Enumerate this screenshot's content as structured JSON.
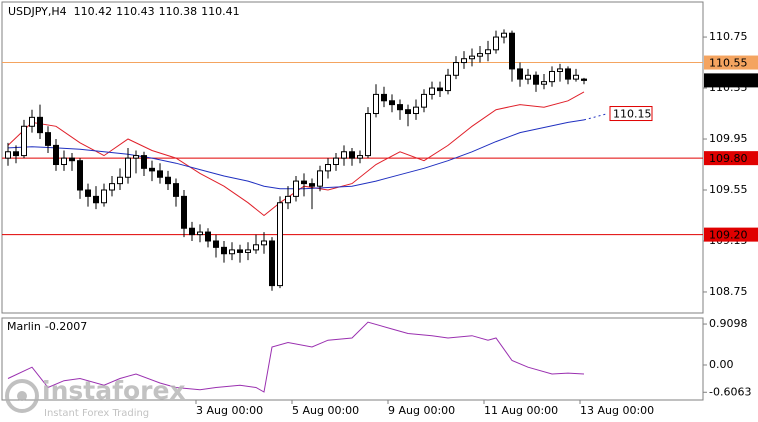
{
  "chart_data": [
    {
      "type": "candlestick",
      "title": "USDJPY,H4",
      "xlim": [
        -0.75,
        86.875
      ],
      "ylim": [
        108.585,
        111.025
      ],
      "yticks": [
        110.75,
        110.35,
        109.95,
        109.55,
        109.15,
        108.75
      ],
      "xticks": [
        {
          "value": 23.5,
          "label": "3 Aug 00:00"
        },
        {
          "value": 35.5,
          "label": "5 Aug 00:00"
        },
        {
          "value": 47.5,
          "label": "9 Aug 00:00"
        },
        {
          "value": 59.5,
          "label": "11 Aug 00:00"
        },
        {
          "value": 71.5,
          "label": "13 Aug 00:00"
        }
      ],
      "up_color": "#ffffff",
      "down_color": "#000000",
      "outline_color": "#000000",
      "open": [
        109.8,
        109.85,
        109.82,
        110.05,
        110.12,
        110.0,
        109.9,
        109.75,
        109.8,
        109.78,
        109.55,
        109.5,
        109.45,
        109.55,
        109.6,
        109.65,
        109.8,
        109.82,
        109.72,
        109.7,
        109.65,
        109.6,
        109.5,
        109.25,
        109.2,
        109.22,
        109.15,
        109.1,
        109.05,
        109.08,
        109.06,
        109.08,
        109.12,
        109.15,
        108.8,
        109.45,
        109.5,
        109.62,
        109.6,
        109.58,
        109.7,
        109.75,
        109.8,
        109.85,
        109.8,
        109.82,
        110.15,
        110.3,
        110.25,
        110.22,
        110.18,
        110.15,
        110.2,
        110.3,
        110.35,
        110.33,
        110.45,
        110.55,
        110.58,
        110.6,
        110.62,
        110.65,
        110.75,
        110.78,
        110.5,
        110.42,
        110.45,
        110.38,
        110.4,
        110.48,
        110.5,
        110.42,
        110.42
      ],
      "high": [
        109.92,
        109.9,
        110.1,
        110.18,
        110.22,
        110.05,
        109.95,
        109.86,
        109.84,
        109.8,
        109.6,
        109.58,
        109.6,
        109.66,
        109.72,
        109.88,
        109.86,
        109.85,
        109.78,
        109.76,
        109.7,
        109.64,
        109.55,
        109.3,
        109.28,
        109.25,
        109.2,
        109.15,
        109.14,
        109.12,
        109.14,
        109.2,
        109.22,
        109.18,
        109.5,
        109.58,
        109.66,
        109.68,
        109.64,
        109.74,
        109.8,
        109.84,
        109.9,
        109.88,
        109.86,
        110.2,
        110.38,
        110.36,
        110.3,
        110.26,
        110.22,
        110.26,
        110.34,
        110.4,
        110.4,
        110.5,
        110.6,
        110.64,
        110.66,
        110.68,
        110.72,
        110.8,
        110.81,
        110.8,
        110.55,
        110.5,
        110.48,
        110.46,
        110.52,
        110.54,
        110.52,
        110.5,
        110.43
      ],
      "low": [
        109.74,
        109.76,
        109.8,
        110.0,
        109.95,
        109.84,
        109.7,
        109.7,
        109.7,
        109.48,
        109.42,
        109.4,
        109.42,
        109.5,
        109.55,
        109.6,
        109.68,
        109.66,
        109.62,
        109.6,
        109.55,
        109.42,
        109.18,
        109.15,
        109.14,
        109.1,
        109.02,
        108.98,
        109.0,
        108.98,
        109.0,
        109.05,
        109.05,
        108.76,
        108.78,
        109.4,
        109.46,
        109.5,
        109.4,
        109.54,
        109.64,
        109.7,
        109.74,
        109.74,
        109.76,
        109.8,
        110.12,
        110.2,
        110.16,
        110.1,
        110.05,
        110.1,
        110.16,
        110.26,
        110.28,
        110.3,
        110.42,
        110.5,
        110.52,
        110.55,
        110.56,
        110.62,
        110.7,
        110.4,
        110.36,
        110.38,
        110.32,
        110.34,
        110.36,
        110.4,
        110.38,
        110.4,
        110.38
      ],
      "close": [
        109.85,
        109.82,
        110.05,
        110.12,
        110.0,
        109.9,
        109.75,
        109.8,
        109.78,
        109.55,
        109.5,
        109.45,
        109.55,
        109.6,
        109.65,
        109.8,
        109.82,
        109.72,
        109.7,
        109.65,
        109.6,
        109.5,
        109.25,
        109.2,
        109.22,
        109.15,
        109.1,
        109.05,
        109.08,
        109.06,
        109.08,
        109.12,
        109.15,
        108.8,
        109.45,
        109.5,
        109.62,
        109.6,
        109.58,
        109.7,
        109.75,
        109.8,
        109.85,
        109.8,
        109.82,
        110.15,
        110.3,
        110.25,
        110.22,
        110.18,
        110.15,
        110.2,
        110.3,
        110.35,
        110.33,
        110.45,
        110.55,
        110.58,
        110.6,
        110.62,
        110.65,
        110.75,
        110.78,
        110.5,
        110.42,
        110.45,
        110.38,
        110.4,
        110.48,
        110.5,
        110.42,
        110.45,
        110.41
      ],
      "series": [
        {
          "color": "#e0202a",
          "x": [
            0,
            3,
            6,
            9,
            12,
            15,
            18,
            21,
            24,
            27,
            30,
            32,
            34,
            37,
            40,
            43,
            46,
            49,
            52,
            55,
            58,
            61,
            64,
            67,
            70,
            72
          ],
          "values": [
            109.9,
            110.08,
            110.05,
            109.92,
            109.82,
            109.95,
            109.86,
            109.8,
            109.68,
            109.58,
            109.45,
            109.35,
            109.45,
            109.58,
            109.55,
            109.6,
            109.75,
            109.85,
            109.78,
            109.9,
            110.05,
            110.18,
            110.22,
            110.2,
            110.25,
            110.32
          ]
        },
        {
          "color": "#2030c0",
          "x": [
            0,
            3,
            6,
            9,
            12,
            15,
            18,
            21,
            24,
            27,
            30,
            32,
            34,
            37,
            40,
            43,
            46,
            49,
            52,
            55,
            58,
            61,
            64,
            67,
            70,
            72
          ],
          "values": [
            109.88,
            109.89,
            109.88,
            109.87,
            109.85,
            109.83,
            109.8,
            109.76,
            109.71,
            109.66,
            109.62,
            109.58,
            109.56,
            109.56,
            109.57,
            109.58,
            109.62,
            109.67,
            109.72,
            109.78,
            109.85,
            109.93,
            110.0,
            110.04,
            110.08,
            110.1
          ],
          "projection": {
            "x": 75,
            "value": 110.15
          }
        }
      ],
      "levels": [
        {
          "value": 110.55,
          "color": "#f4a460"
        },
        {
          "value": {
            "value": 109.8,
            "label": "109.80"
          },
          "color": "#e00000"
        },
        {
          "value": {
            "value": 109.2,
            "label": "109.20"
          },
          "color": "#e00000"
        }
      ]
    },
    {
      "type": "line",
      "name": "Marlin",
      "color": "#9a30b0",
      "xlim": [
        -0.75,
        86.875
      ],
      "ylim": [
        -0.778,
        1.044
      ],
      "yticks": [
        0.9098,
        {
          "value": 0,
          "label": "0.00"
        },
        -0.6063
      ],
      "x": [
        0,
        3,
        5,
        7,
        9,
        12,
        14,
        16,
        19,
        21,
        24,
        26,
        29,
        31,
        32,
        33,
        35,
        38,
        40,
        43,
        45,
        48,
        50,
        53,
        55,
        58,
        60,
        61,
        63,
        65,
        68,
        70,
        72
      ],
      "values": [
        -0.3,
        -0.05,
        -0.5,
        -0.35,
        -0.3,
        -0.45,
        -0.3,
        -0.2,
        -0.4,
        -0.5,
        -0.55,
        -0.5,
        -0.45,
        -0.5,
        -0.6,
        0.4,
        0.5,
        0.4,
        0.55,
        0.6,
        0.95,
        0.8,
        0.7,
        0.65,
        0.6,
        0.65,
        0.55,
        0.6,
        0.1,
        -0.05,
        -0.2,
        -0.18,
        -0.2007
      ]
    }
  ],
  "watermark": {
    "brand": "instaforex",
    "slogan": "Instant Forex Trading"
  }
}
